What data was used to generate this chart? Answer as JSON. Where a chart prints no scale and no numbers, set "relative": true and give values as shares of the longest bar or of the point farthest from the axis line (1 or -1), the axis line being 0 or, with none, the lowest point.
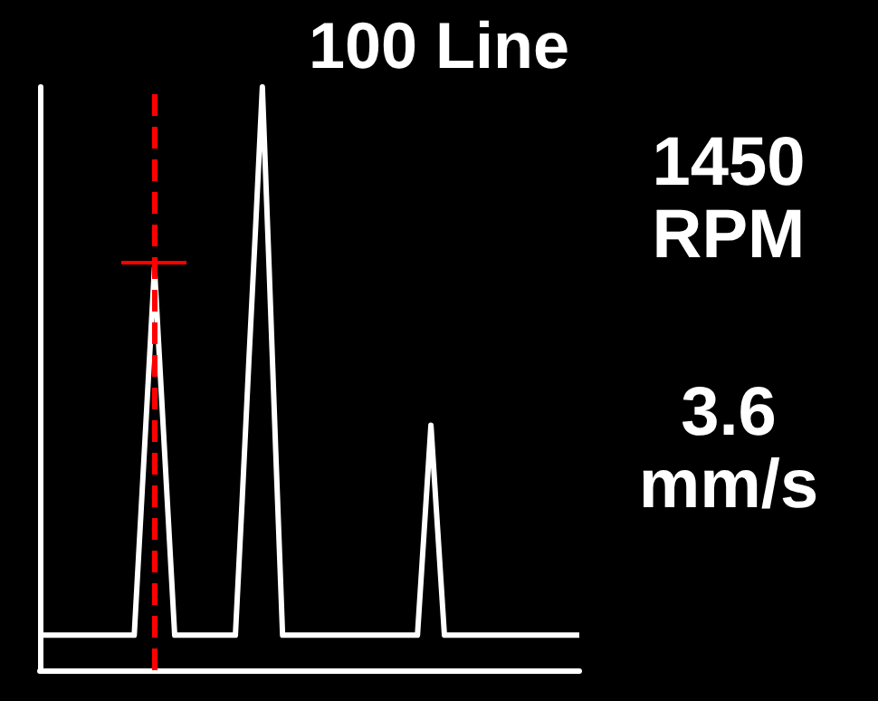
{
  "chart_data": {
    "type": "line",
    "title": "100 Line",
    "relative": true,
    "categories": [
      null,
      null,
      null,
      null,
      null,
      null,
      null,
      null,
      null,
      null,
      null,
      null,
      null,
      null,
      null,
      null,
      null,
      null,
      null,
      null,
      null,
      null,
      null,
      null,
      null,
      null,
      null,
      null,
      null,
      null,
      null,
      null,
      null,
      null,
      null,
      null,
      null,
      null,
      null,
      null,
      null,
      null,
      null,
      null,
      null,
      null,
      null,
      null,
      null,
      null,
      null,
      null,
      null,
      null,
      null,
      null,
      null,
      null,
      null,
      null,
      null,
      null,
      null,
      null,
      null,
      null,
      null,
      null,
      null,
      null,
      null,
      null,
      null,
      null,
      null,
      null,
      null,
      null,
      null,
      null,
      null
    ],
    "series": [
      {
        "color": "#ffffff",
        "values": [
          0.06,
          0.06,
          0.06,
          0.06,
          0.06,
          0.06,
          0.06,
          0.06,
          0.06,
          0.06,
          0.06,
          0.06,
          0.06,
          0.06,
          0.06,
          0.27,
          0.48,
          0.69,
          0.48,
          0.27,
          0.06,
          0.06,
          0.06,
          0.06,
          0.06,
          0.06,
          0.06,
          0.06,
          0.06,
          0.06,
          0.29,
          0.53,
          0.76,
          1,
          0.69,
          0.37,
          0.06,
          0.06,
          0.06,
          0.06,
          0.06,
          0.06,
          0.06,
          0.06,
          0.06,
          0.06,
          0.06,
          0.06,
          0.06,
          0.06,
          0.06,
          0.06,
          0.06,
          0.06,
          0.06,
          0.06,
          0.06,
          0.24,
          0.42,
          0.24,
          0.06,
          0.06,
          0.06,
          0.06,
          0.06,
          0.06,
          0.06,
          0.06,
          0.06,
          0.06,
          0.06,
          0.06,
          0.06,
          0.06,
          0.06,
          0.06,
          0.06,
          0.06,
          0.06,
          0.06,
          0.06
        ]
      }
    ],
    "annotations": [
      "1450 RPM",
      "3.6 mm/s"
    ],
    "grid": false,
    "marker": "none",
    "line_style": "solid"
  }
}
